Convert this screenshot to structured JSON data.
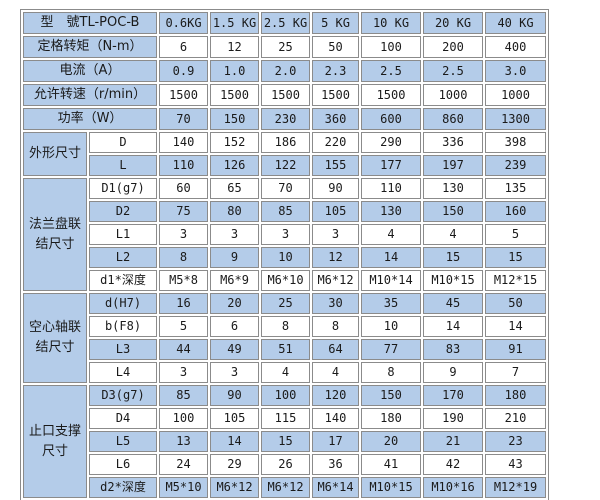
{
  "colors": {
    "row_blue": "#b4cce9",
    "row_white": "#ffffff",
    "border": "#8b8b8b",
    "text": "#1a1a1a"
  },
  "chart_data": {
    "type": "table",
    "title": "TL-POC-B specification table"
  },
  "table": {
    "header": {
      "model_label": "型　號TL-POC-B",
      "weight_columns": [
        "0.6KG",
        "1.5 KG",
        "2.5 KG",
        "5 KG",
        "10 KG",
        "20 KG",
        "40 KG"
      ]
    },
    "simple_rows": [
      {
        "label": "定格转矩（N-m）",
        "values": [
          "6",
          "12",
          "25",
          "50",
          "100",
          "200",
          "400"
        ]
      },
      {
        "label": "电流（A）",
        "values": [
          "0.9",
          "1.0",
          "2.0",
          "2.3",
          "2.5",
          "2.5",
          "3.0"
        ]
      },
      {
        "label": "允许转速（r/min）",
        "values": [
          "1500",
          "1500",
          "1500",
          "1500",
          "1500",
          "1000",
          "1000"
        ]
      },
      {
        "label": "功率（W）",
        "values": [
          "70",
          "150",
          "230",
          "360",
          "600",
          "860",
          "1300"
        ]
      }
    ],
    "groups": [
      {
        "label": "外形尺寸",
        "rows": [
          {
            "sub": "D",
            "values": [
              "140",
              "152",
              "186",
              "220",
              "290",
              "336",
              "398"
            ]
          },
          {
            "sub": "L",
            "values": [
              "110",
              "126",
              "122",
              "155",
              "177",
              "197",
              "239"
            ]
          }
        ]
      },
      {
        "label": "法兰盘联结尺寸",
        "rows": [
          {
            "sub": "D1(g7)",
            "values": [
              "60",
              "65",
              "70",
              "90",
              "110",
              "130",
              "135"
            ]
          },
          {
            "sub": "D2",
            "values": [
              "75",
              "80",
              "85",
              "105",
              "130",
              "150",
              "160"
            ]
          },
          {
            "sub": "L1",
            "values": [
              "3",
              "3",
              "3",
              "3",
              "4",
              "4",
              "5"
            ]
          },
          {
            "sub": "L2",
            "values": [
              "8",
              "9",
              "10",
              "12",
              "14",
              "15",
              "15"
            ]
          },
          {
            "sub": "d1*深度",
            "values": [
              "M5*8",
              "M6*9",
              "M6*10",
              "M6*12",
              "M10*14",
              "M10*15",
              "M12*15"
            ]
          }
        ]
      },
      {
        "label": "空心轴联结尺寸",
        "rows": [
          {
            "sub": "d(H7)",
            "values": [
              "16",
              "20",
              "25",
              "30",
              "35",
              "45",
              "50"
            ]
          },
          {
            "sub": "b(F8)",
            "values": [
              "5",
              "6",
              "8",
              "8",
              "10",
              "14",
              "14"
            ]
          },
          {
            "sub": "L3",
            "values": [
              "44",
              "49",
              "51",
              "64",
              "77",
              "83",
              "91"
            ]
          },
          {
            "sub": "L4",
            "values": [
              "3",
              "3",
              "4",
              "4",
              "8",
              "9",
              "7"
            ]
          }
        ]
      },
      {
        "label": "止口支撑尺寸",
        "rows": [
          {
            "sub": "D3(g7)",
            "values": [
              "85",
              "90",
              "100",
              "120",
              "150",
              "170",
              "180"
            ]
          },
          {
            "sub": "D4",
            "values": [
              "100",
              "105",
              "115",
              "140",
              "180",
              "190",
              "210"
            ]
          },
          {
            "sub": "L5",
            "values": [
              "13",
              "14",
              "15",
              "17",
              "20",
              "21",
              "23"
            ]
          },
          {
            "sub": "L6",
            "values": [
              "24",
              "29",
              "26",
              "36",
              "41",
              "42",
              "43"
            ]
          },
          {
            "sub": "d2*深度",
            "values": [
              "M5*10",
              "M6*12",
              "M6*12",
              "M6*14",
              "M10*15",
              "M10*16",
              "M12*19"
            ]
          }
        ]
      }
    ]
  }
}
